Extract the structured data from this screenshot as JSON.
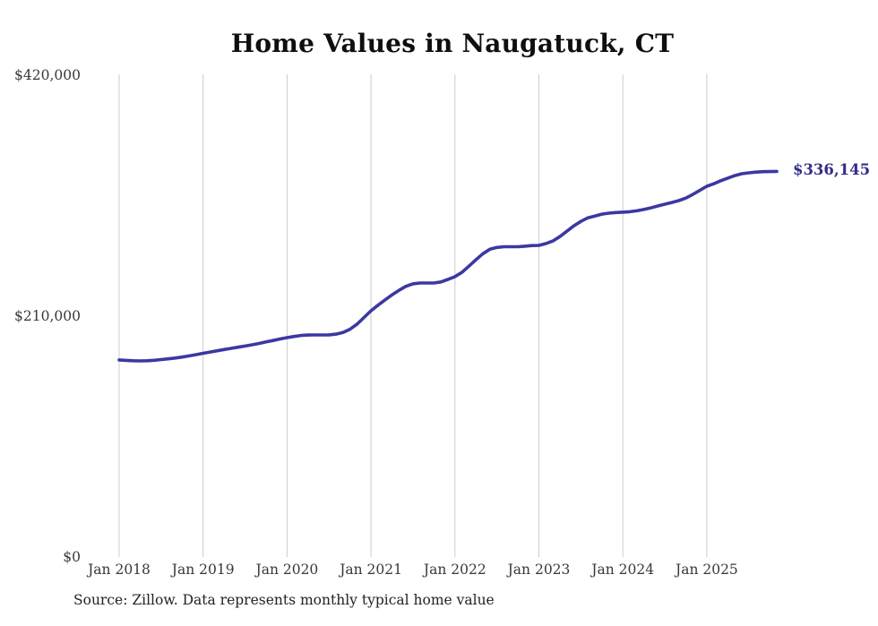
{
  "title": "Home Values in Naugatuck, CT",
  "source_note": "Source: Zillow. Data represents monthly typical home value",
  "end_label": "$336,145",
  "colors": {
    "line": "#3b38a2",
    "end_label": "#312d86",
    "grid": "#cccccc",
    "title_text": "#0f0f0f",
    "tick_text": "#383838",
    "background": "#ffffff"
  },
  "chart_data": {
    "type": "line",
    "title": "Home Values in Naugatuck, CT",
    "xlabel": "",
    "ylabel": "",
    "legend": "none",
    "grid": "vertical-only",
    "ylim": [
      0,
      420000
    ],
    "y_ticks": [
      0,
      210000,
      420000
    ],
    "y_tick_labels": [
      "$0",
      "$210,000",
      "$420,000"
    ],
    "x_tick_labels": [
      "Jan 2018",
      "Jan 2019",
      "Jan 2020",
      "Jan 2021",
      "Jan 2022",
      "Jan 2023",
      "Jan 2024",
      "Jan 2025"
    ],
    "x_tick_month_indices": [
      0,
      12,
      24,
      36,
      48,
      60,
      72,
      84
    ],
    "frequency": "monthly",
    "annotation": {
      "text": "$336,145",
      "value": 336145
    },
    "x": [
      "2018-01",
      "2018-02",
      "2018-03",
      "2018-04",
      "2018-05",
      "2018-06",
      "2018-07",
      "2018-08",
      "2018-09",
      "2018-10",
      "2018-11",
      "2018-12",
      "2019-01",
      "2019-02",
      "2019-03",
      "2019-04",
      "2019-05",
      "2019-06",
      "2019-07",
      "2019-08",
      "2019-09",
      "2019-10",
      "2019-11",
      "2019-12",
      "2020-01",
      "2020-02",
      "2020-03",
      "2020-04",
      "2020-05",
      "2020-06",
      "2020-07",
      "2020-08",
      "2020-09",
      "2020-10",
      "2020-11",
      "2020-12",
      "2021-01",
      "2021-02",
      "2021-03",
      "2021-04",
      "2021-05",
      "2021-06",
      "2021-07",
      "2021-08",
      "2021-09",
      "2021-10",
      "2021-11",
      "2021-12",
      "2022-01",
      "2022-02",
      "2022-03",
      "2022-04",
      "2022-05",
      "2022-06",
      "2022-07",
      "2022-08",
      "2022-09",
      "2022-10",
      "2022-11",
      "2022-12",
      "2023-01",
      "2023-02",
      "2023-03",
      "2023-04",
      "2023-05",
      "2023-06",
      "2023-07",
      "2023-08",
      "2023-09",
      "2023-10",
      "2023-11",
      "2023-12",
      "2024-01",
      "2024-02",
      "2024-03",
      "2024-04",
      "2024-05",
      "2024-06",
      "2024-07",
      "2024-08",
      "2024-09",
      "2024-10",
      "2024-11",
      "2024-12",
      "2025-01",
      "2025-02",
      "2025-03",
      "2025-04",
      "2025-05",
      "2025-06",
      "2025-07",
      "2025-08",
      "2025-09",
      "2025-10",
      "2025-11"
    ],
    "values": [
      171800,
      171400,
      171100,
      171000,
      171100,
      171500,
      172100,
      172800,
      173500,
      174300,
      175300,
      176400,
      177600,
      178700,
      179800,
      180900,
      181900,
      182900,
      183900,
      185000,
      186200,
      187500,
      188800,
      190100,
      191300,
      192300,
      193100,
      193500,
      193600,
      193600,
      193700,
      194300,
      195800,
      198600,
      203000,
      208800,
      214700,
      219500,
      224100,
      228500,
      232500,
      236000,
      238200,
      238900,
      238900,
      238900,
      239800,
      242000,
      244400,
      248200,
      253600,
      259100,
      264400,
      268300,
      269900,
      270500,
      270500,
      270500,
      271000,
      271500,
      271700,
      273200,
      275500,
      279300,
      284000,
      288700,
      292600,
      295700,
      297300,
      298900,
      299800,
      300300,
      300600,
      301000,
      301800,
      303000,
      304400,
      306000,
      307600,
      309100,
      310700,
      312900,
      316100,
      319600,
      323200,
      325400,
      328000,
      330300,
      332500,
      334100,
      334900,
      335500,
      335900,
      336000,
      336145
    ]
  }
}
